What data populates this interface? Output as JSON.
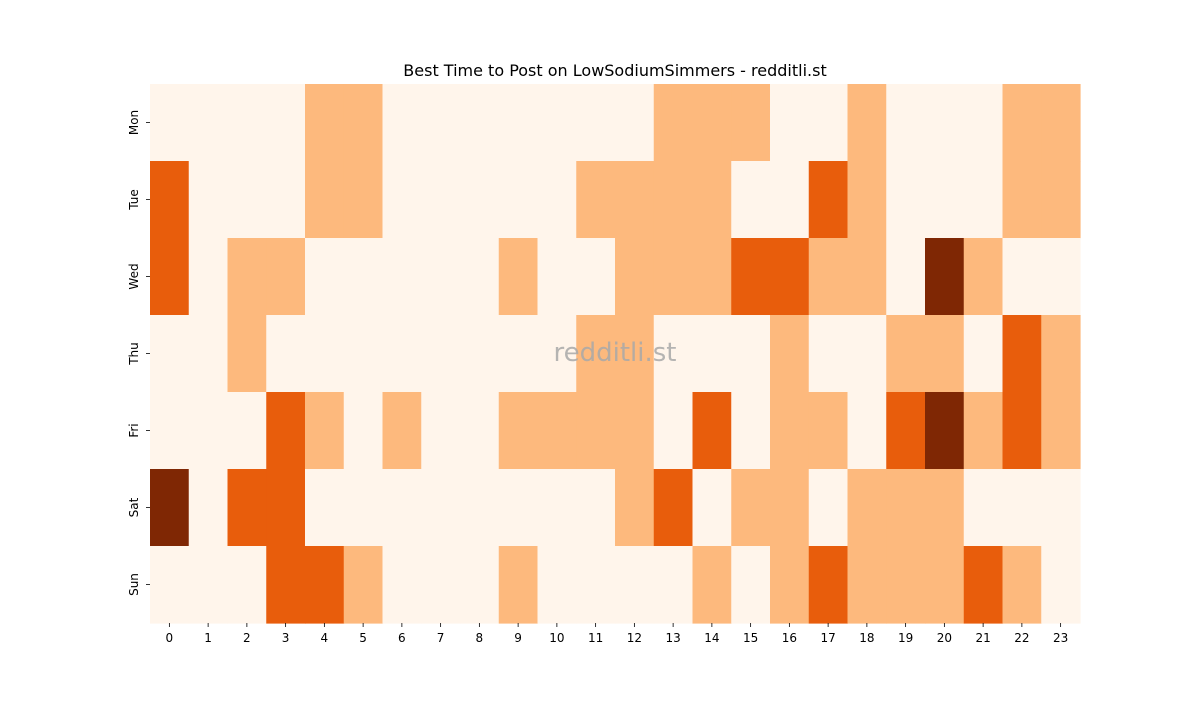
{
  "chart_data": {
    "type": "heatmap",
    "title": "Best Time to Post on LowSodiumSimmers - redditli.st",
    "watermark": "redditli.st",
    "xlabel": "",
    "ylabel": "",
    "x_categories": [
      "0",
      "1",
      "2",
      "3",
      "4",
      "5",
      "6",
      "7",
      "8",
      "9",
      "10",
      "11",
      "12",
      "13",
      "14",
      "15",
      "16",
      "17",
      "18",
      "19",
      "20",
      "21",
      "22",
      "23"
    ],
    "y_categories": [
      "Mon",
      "Tue",
      "Wed",
      "Thu",
      "Fri",
      "Sat",
      "Sun"
    ],
    "colormap": [
      "#fff5eb",
      "#fdb97d",
      "#e85d0c",
      "#7f2704"
    ],
    "levels": [
      0,
      1,
      2,
      3
    ],
    "values": [
      [
        0,
        0,
        0,
        0,
        1,
        1,
        0,
        0,
        0,
        0,
        0,
        0,
        0,
        1,
        1,
        1,
        0,
        0,
        1,
        0,
        0,
        0,
        1,
        1
      ],
      [
        2,
        0,
        0,
        0,
        1,
        1,
        0,
        0,
        0,
        0,
        0,
        1,
        1,
        1,
        1,
        0,
        0,
        2,
        1,
        0,
        0,
        0,
        1,
        1
      ],
      [
        2,
        0,
        1,
        1,
        0,
        0,
        0,
        0,
        0,
        1,
        0,
        0,
        1,
        1,
        1,
        2,
        2,
        1,
        1,
        0,
        3,
        1,
        0,
        0
      ],
      [
        0,
        0,
        1,
        0,
        0,
        0,
        0,
        0,
        0,
        0,
        0,
        1,
        1,
        0,
        0,
        0,
        1,
        0,
        0,
        1,
        1,
        0,
        2,
        1
      ],
      [
        0,
        0,
        0,
        2,
        1,
        0,
        1,
        0,
        0,
        1,
        1,
        1,
        1,
        0,
        2,
        0,
        1,
        1,
        0,
        2,
        3,
        1,
        2,
        1
      ],
      [
        3,
        0,
        2,
        2,
        0,
        0,
        0,
        0,
        0,
        0,
        0,
        0,
        1,
        2,
        0,
        1,
        1,
        0,
        1,
        1,
        1,
        0,
        0,
        0
      ],
      [
        0,
        0,
        0,
        2,
        2,
        1,
        0,
        0,
        0,
        1,
        0,
        0,
        0,
        0,
        1,
        0,
        1,
        2,
        1,
        1,
        1,
        2,
        1,
        0
      ]
    ]
  }
}
